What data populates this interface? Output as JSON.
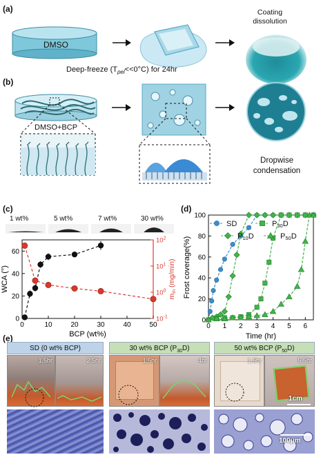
{
  "panel_a": {
    "label": "(a)",
    "dish_label": "DMSO",
    "caption": "Deep-freeze (T",
    "caption_sub": "pel",
    "caption_rest": "<<0°C) for 24hr",
    "result_label_1": "Coating",
    "result_label_2": "dissolution"
  },
  "panel_b": {
    "label": "(b)",
    "dish_label": "DMSO+BCP",
    "result_label_1": "Dropwise",
    "result_label_2": "condensation"
  },
  "panel_c": {
    "label": "(c)",
    "droplet_labels": [
      "1 wt%",
      "5 wt%",
      "7 wt%",
      "30 wt%"
    ],
    "colors": {
      "wca": "#111111",
      "mi": "#d9382b"
    }
  },
  "panel_d": {
    "label": "(d)"
  },
  "panel_e": {
    "label": "(e)",
    "headers": [
      {
        "text": "SD (0 wt% BCP)",
        "bg": "#bcd3ea"
      },
      {
        "text": "30 wt% BCP (P",
        "sub": "30",
        "tail": "D)",
        "bg": "#c6dfb6"
      },
      {
        "text": "50 wt% BCP (P",
        "sub": "50",
        "tail": "D)",
        "bg": "#c6dfb6"
      }
    ],
    "timestamps": [
      "1.5hr",
      "2.5hr",
      "1.5hr",
      "4hr",
      "1.5hr",
      "5.5hr"
    ],
    "scale_photo": "1cm",
    "scale_micro": "100μm"
  },
  "chart_data": [
    {
      "type": "scatter",
      "panel": "c",
      "xlabel": "BCP (wt%)",
      "ylabel_left": "WCA (°)",
      "ylabel_right": "m",
      "ylabel_right_sub": "in",
      "ylabel_right_unit": " (mg/min)",
      "xlim": [
        0,
        50
      ],
      "ylim_left": [
        0,
        70
      ],
      "ylim_right": [
        0.1,
        100
      ],
      "right_scale": "log",
      "x_ticks": [
        "0",
        "10",
        "20",
        "30",
        "40",
        "50"
      ],
      "y_left_ticks": [
        "0",
        "20",
        "40",
        "60"
      ],
      "y_right_ticks": [
        "10",
        "10",
        "10",
        "10"
      ],
      "y_right_tick_exps": [
        "-1",
        "0",
        "1",
        "2"
      ],
      "series": [
        {
          "axis": "left",
          "color": "#111111",
          "x": [
            1,
            3,
            5,
            7,
            10,
            20,
            30
          ],
          "y": [
            1,
            22,
            27,
            48,
            55,
            57,
            65
          ],
          "err": [
            0,
            3,
            3,
            3,
            3,
            2,
            4
          ]
        },
        {
          "axis": "right",
          "color": "#d9382b",
          "x": [
            1,
            5,
            10,
            20,
            30,
            50
          ],
          "y": [
            60,
            2.8,
            1.9,
            1.4,
            1.1,
            0.55
          ]
        }
      ]
    },
    {
      "type": "line",
      "panel": "d",
      "xlabel": "Time (hr)",
      "ylabel": "Frost coverage(%)",
      "xlim": [
        0,
        6.5
      ],
      "ylim": [
        0,
        100
      ],
      "x_ticks": [
        "0",
        "1",
        "2",
        "3",
        "4",
        "5",
        "6"
      ],
      "y_ticks": [
        "0",
        "20",
        "40",
        "60",
        "80",
        "100"
      ],
      "series": [
        {
          "name": "SD",
          "color": "#3a8fd0",
          "marker": "circle",
          "x": [
            0,
            0.1,
            0.2,
            0.3,
            0.5,
            0.75,
            1.0,
            1.5,
            2.0,
            2.5,
            3.0,
            3.5,
            4.0,
            4.5,
            5.0,
            5.5,
            6.0,
            6.5
          ],
          "y": [
            0,
            8,
            18,
            28,
            38,
            48,
            58,
            72,
            80,
            88,
            100,
            100,
            100,
            100,
            100,
            100,
            100,
            100
          ]
        },
        {
          "name": "P10D",
          "color": "#43b34a",
          "marker": "diamond",
          "x": [
            0,
            0.25,
            0.5,
            0.75,
            1.0,
            1.25,
            1.5,
            1.75,
            2.0,
            2.5,
            3.0,
            3.5,
            4.0,
            4.5,
            5.0,
            5.5,
            6.0,
            6.5
          ],
          "y": [
            0,
            2,
            3,
            5,
            8,
            22,
            42,
            62,
            82,
            100,
            100,
            100,
            100,
            100,
            100,
            100,
            100,
            100
          ]
        },
        {
          "name": "P30D",
          "color": "#43b34a",
          "marker": "square",
          "x": [
            0,
            0.5,
            1.0,
            1.5,
            2.0,
            2.5,
            3.0,
            3.25,
            3.5,
            3.75,
            4.0,
            4.5,
            5.0,
            5.5,
            6.0,
            6.5
          ],
          "y": [
            0,
            1,
            2,
            2,
            3,
            5,
            12,
            20,
            35,
            55,
            78,
            100,
            100,
            100,
            100,
            100
          ]
        },
        {
          "name": "P50D",
          "color": "#43b34a",
          "marker": "triangle",
          "x": [
            0,
            0.5,
            1.0,
            1.5,
            2.0,
            2.5,
            3.0,
            3.5,
            4.0,
            4.5,
            5.0,
            5.5,
            5.75,
            6.0,
            6.25,
            6.5
          ],
          "y": [
            0,
            1,
            1,
            2,
            2,
            3,
            4,
            5,
            8,
            15,
            22,
            32,
            48,
            75,
            100,
            100
          ]
        }
      ]
    }
  ]
}
